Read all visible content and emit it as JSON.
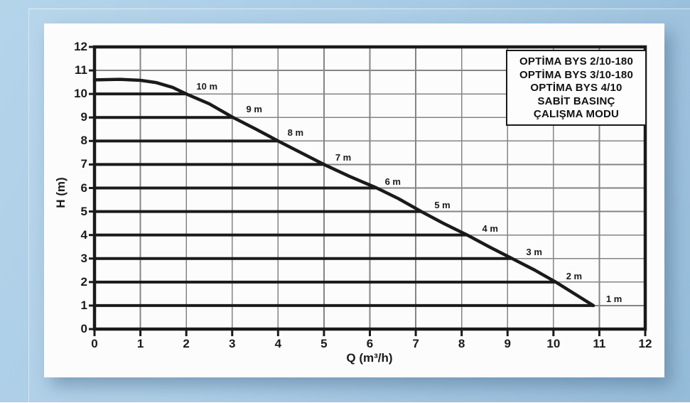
{
  "colors": {
    "background_outer": "#a8cbe5",
    "paper": "#fcfcfc",
    "axis": "#1a1a1a",
    "grid": "#858585",
    "curve": "#1a1a1a",
    "pressure_line": "#1a1a1a",
    "text": "#1a1a1a",
    "legend_bg": "#fdfdfd",
    "legend_border": "#1a1a1a"
  },
  "legend": {
    "lines": [
      "OPTİMA BYS 2/10-180",
      "OPTİMA BYS 3/10-180",
      "OPTİMA BYS 4/10",
      "SABİT BASINÇ",
      "ÇALIŞMA MODU"
    ]
  },
  "axes": {
    "xlabel": "Q (m³/h)",
    "ylabel": "H (m)",
    "xticks": [
      "0",
      "1",
      "2",
      "3",
      "4",
      "5",
      "6",
      "7",
      "8",
      "9",
      "10",
      "11",
      "12"
    ],
    "yticks": [
      "0",
      "1",
      "2",
      "3",
      "4",
      "5",
      "6",
      "7",
      "8",
      "9",
      "10",
      "11",
      "12"
    ]
  },
  "chart_data": {
    "type": "line",
    "title": "OPTİMA BYS 2/10-180 / 3/10-180 / 4/10 — SABİT BASINÇ ÇALIŞMA MODU",
    "xlabel": "Q (m³/h)",
    "ylabel": "H (m)",
    "xlim": [
      0,
      12
    ],
    "ylim": [
      0,
      12
    ],
    "grid": true,
    "legend_position": "top-right",
    "series": [
      {
        "name": "pump-max-curve",
        "points": [
          [
            0,
            10.6
          ],
          [
            0.55,
            10.62
          ],
          [
            1.0,
            10.58
          ],
          [
            1.35,
            10.48
          ],
          [
            1.7,
            10.28
          ],
          [
            2.0,
            10.0
          ],
          [
            2.5,
            9.58
          ],
          [
            3.0,
            9.02
          ],
          [
            3.5,
            8.52
          ],
          [
            4.0,
            8.0
          ],
          [
            4.5,
            7.5
          ],
          [
            5.0,
            7.0
          ],
          [
            5.55,
            6.5
          ],
          [
            6.15,
            6.0
          ],
          [
            6.62,
            5.55
          ],
          [
            7.12,
            5.0
          ],
          [
            7.6,
            4.5
          ],
          [
            8.12,
            4.0
          ],
          [
            8.6,
            3.5
          ],
          [
            9.1,
            3.0
          ],
          [
            9.6,
            2.5
          ],
          [
            10.05,
            2.0
          ],
          [
            10.5,
            1.45
          ],
          [
            10.87,
            1.0
          ]
        ]
      }
    ],
    "constant_pressure_lines": [
      {
        "h": 10,
        "q_end": 2.0,
        "label": "10 m",
        "label_q": 2.45,
        "label_h": 10.3
      },
      {
        "h": 9,
        "q_end": 3.02,
        "label": "9 m",
        "label_q": 3.48,
        "label_h": 9.33
      },
      {
        "h": 8,
        "q_end": 4.0,
        "label": "8 m",
        "label_q": 4.38,
        "label_h": 8.33
      },
      {
        "h": 7,
        "q_end": 5.03,
        "label": "7 m",
        "label_q": 5.42,
        "label_h": 7.28
      },
      {
        "h": 6,
        "q_end": 6.15,
        "label": "6 m",
        "label_q": 6.5,
        "label_h": 6.26
      },
      {
        "h": 5,
        "q_end": 7.12,
        "label": "5 m",
        "label_q": 7.58,
        "label_h": 5.27
      },
      {
        "h": 4,
        "q_end": 8.12,
        "label": "4 m",
        "label_q": 8.62,
        "label_h": 4.26
      },
      {
        "h": 3,
        "q_end": 9.1,
        "label": "3 m",
        "label_q": 9.58,
        "label_h": 3.25
      },
      {
        "h": 2,
        "q_end": 10.05,
        "label": "2 m",
        "label_q": 10.45,
        "label_h": 2.23
      },
      {
        "h": 1,
        "q_end": 10.87,
        "label": "1 m",
        "label_q": 11.32,
        "label_h": 1.26
      }
    ]
  }
}
